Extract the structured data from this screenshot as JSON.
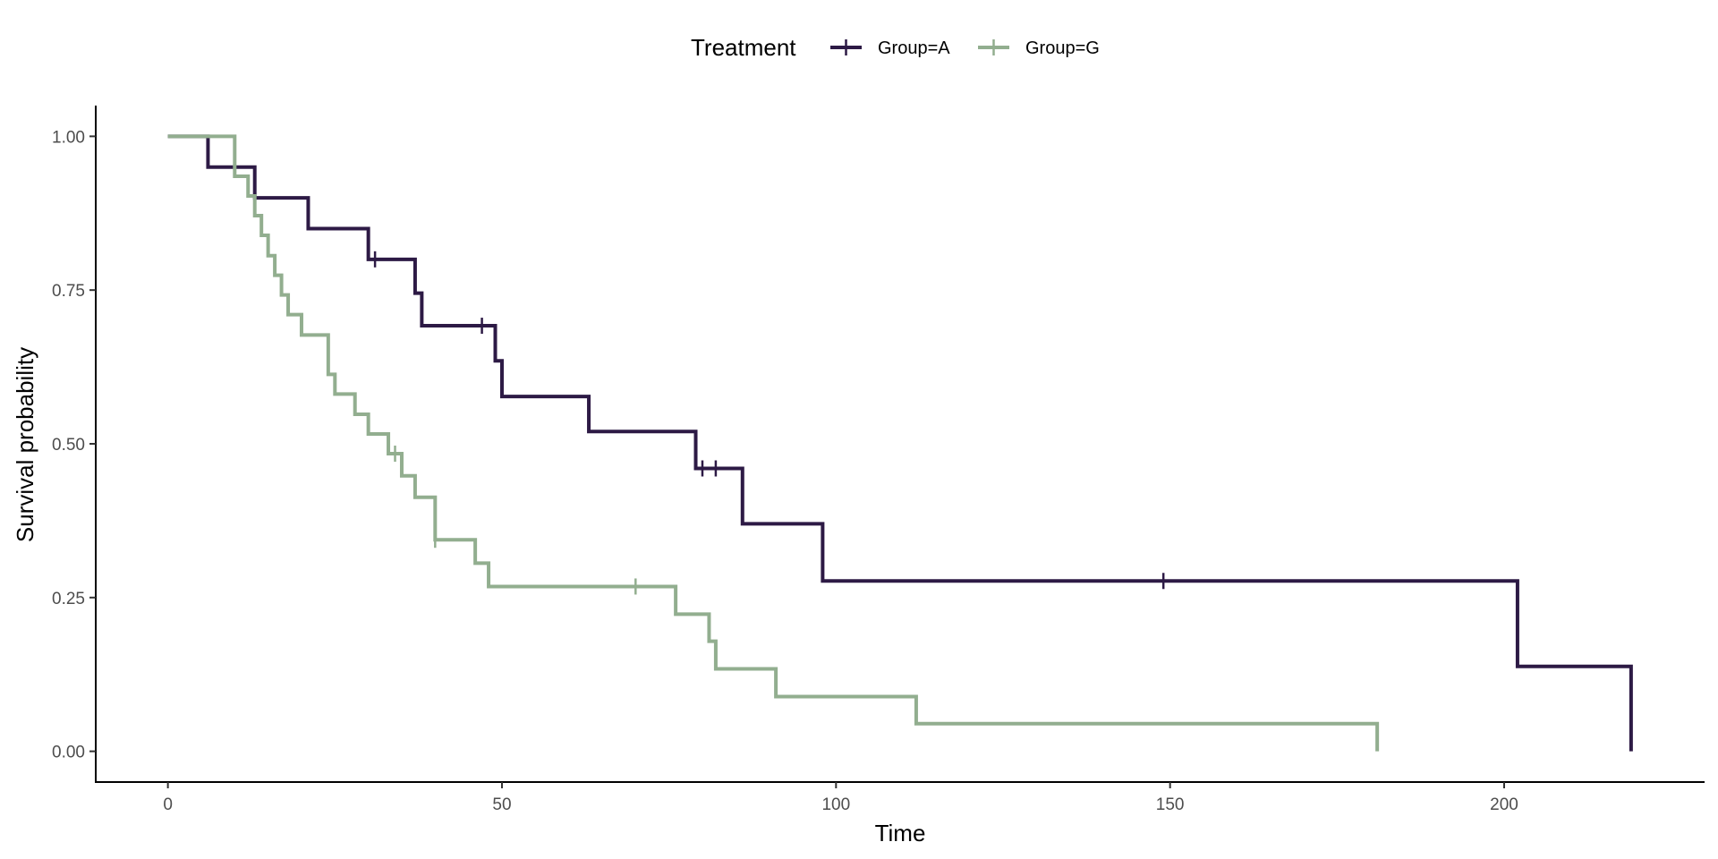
{
  "chart_data": {
    "type": "line",
    "xlabel": "Time",
    "ylabel": "Survival probability",
    "xlim": [
      -10.8,
      230
    ],
    "ylim": [
      -0.05,
      1.05
    ],
    "x_ticks": [
      0,
      50,
      100,
      150,
      200
    ],
    "x_tick_labels": [
      "0",
      "50",
      "100",
      "150",
      "200"
    ],
    "y_ticks": [
      0,
      0.25,
      0.5,
      0.75,
      1
    ],
    "y_tick_labels": [
      "0.00",
      "0.25",
      "0.50",
      "0.75",
      "1.00"
    ],
    "grid": false,
    "legend": {
      "title": "Treatment",
      "position": "top",
      "entries": [
        "Group=A",
        "Group=G"
      ]
    },
    "series": [
      {
        "name": "Group=A",
        "color": "#2d1a45",
        "steps": [
          {
            "x": 0,
            "y": 1.0
          },
          {
            "x": 6,
            "y": 0.95
          },
          {
            "x": 13,
            "y": 0.9
          },
          {
            "x": 21,
            "y": 0.85
          },
          {
            "x": 30,
            "y": 0.8
          },
          {
            "x": 37,
            "y": 0.745
          },
          {
            "x": 38,
            "y": 0.692
          },
          {
            "x": 49,
            "y": 0.635
          },
          {
            "x": 50,
            "y": 0.577
          },
          {
            "x": 63,
            "y": 0.52
          },
          {
            "x": 79,
            "y": 0.46
          },
          {
            "x": 86,
            "y": 0.37
          },
          {
            "x": 98,
            "y": 0.277
          },
          {
            "x": 202,
            "y": 0.138
          },
          {
            "x": 219,
            "y": 0.0
          }
        ],
        "end_x": 219,
        "censor": [
          {
            "x": 31,
            "y": 0.8
          },
          {
            "x": 47,
            "y": 0.692
          },
          {
            "x": 80,
            "y": 0.46
          },
          {
            "x": 82,
            "y": 0.46
          },
          {
            "x": 149,
            "y": 0.277
          }
        ]
      },
      {
        "name": "Group=G",
        "color": "#92ae8f",
        "steps": [
          {
            "x": 0,
            "y": 1.0
          },
          {
            "x": 10,
            "y": 0.935
          },
          {
            "x": 12,
            "y": 0.903
          },
          {
            "x": 13,
            "y": 0.871
          },
          {
            "x": 14,
            "y": 0.839
          },
          {
            "x": 15,
            "y": 0.806
          },
          {
            "x": 16,
            "y": 0.774
          },
          {
            "x": 17,
            "y": 0.742
          },
          {
            "x": 18,
            "y": 0.71
          },
          {
            "x": 20,
            "y": 0.677
          },
          {
            "x": 24,
            "y": 0.613
          },
          {
            "x": 25,
            "y": 0.581
          },
          {
            "x": 28,
            "y": 0.548
          },
          {
            "x": 30,
            "y": 0.516
          },
          {
            "x": 33,
            "y": 0.484
          },
          {
            "x": 35,
            "y": 0.448
          },
          {
            "x": 37,
            "y": 0.413
          },
          {
            "x": 40,
            "y": 0.344
          },
          {
            "x": 46,
            "y": 0.306
          },
          {
            "x": 48,
            "y": 0.268
          },
          {
            "x": 76,
            "y": 0.223
          },
          {
            "x": 81,
            "y": 0.179
          },
          {
            "x": 82,
            "y": 0.134
          },
          {
            "x": 91,
            "y": 0.089
          },
          {
            "x": 112,
            "y": 0.045
          },
          {
            "x": 181,
            "y": 0.0
          }
        ],
        "end_x": 181,
        "censor": [
          {
            "x": 34,
            "y": 0.484
          },
          {
            "x": 40,
            "y": 0.344
          },
          {
            "x": 70,
            "y": 0.268
          }
        ]
      }
    ]
  }
}
